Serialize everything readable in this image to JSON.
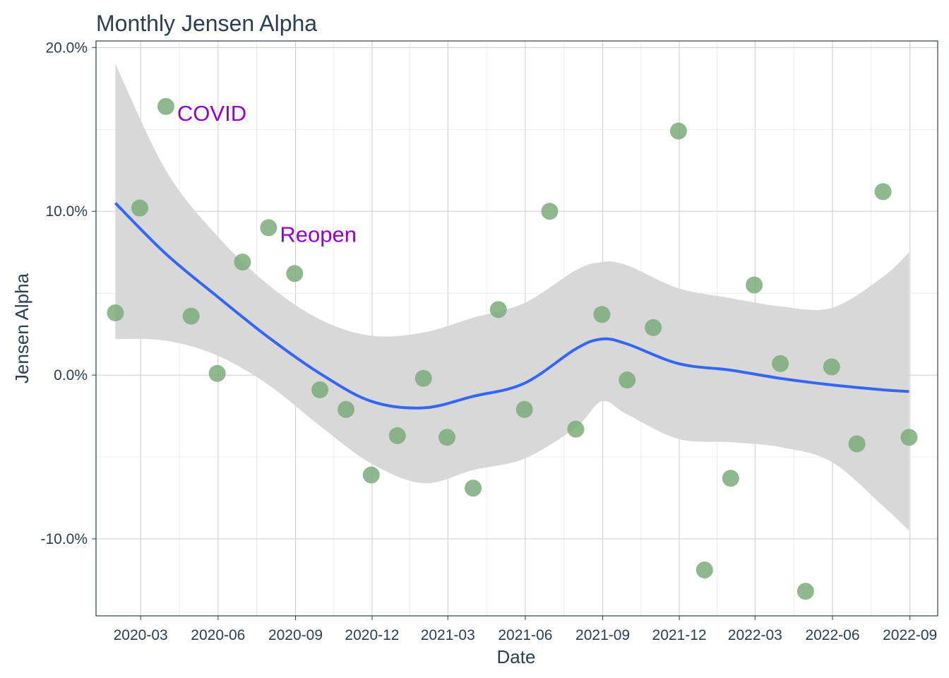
{
  "chart_data": {
    "type": "scatter",
    "title": "Monthly Jensen Alpha",
    "xlabel": "Date",
    "ylabel": "Jensen Alpha",
    "x_ticks": [
      "2020-03",
      "2020-06",
      "2020-09",
      "2020-12",
      "2021-03",
      "2021-06",
      "2021-09",
      "2021-12",
      "2022-03",
      "2022-06",
      "2022-09"
    ],
    "y_ticks": [
      "-10.0%",
      "0.0%",
      "10.0%",
      "20.0%"
    ],
    "xlim": [
      "2020-01-08",
      "2022-10-04"
    ],
    "ylim": [
      -14.7,
      20.4
    ],
    "grid": true,
    "points": [
      {
        "x": "2020-01-31",
        "y": 3.8
      },
      {
        "x": "2020-02-29",
        "y": 10.2
      },
      {
        "x": "2020-03-31",
        "y": 16.4
      },
      {
        "x": "2020-04-30",
        "y": 3.6
      },
      {
        "x": "2020-05-31",
        "y": 0.1
      },
      {
        "x": "2020-06-30",
        "y": 6.9
      },
      {
        "x": "2020-07-31",
        "y": 9.0
      },
      {
        "x": "2020-08-31",
        "y": 6.2
      },
      {
        "x": "2020-09-30",
        "y": -0.9
      },
      {
        "x": "2020-10-31",
        "y": -2.1
      },
      {
        "x": "2020-11-30",
        "y": -6.1
      },
      {
        "x": "2020-12-31",
        "y": -3.7
      },
      {
        "x": "2021-01-31",
        "y": -0.2
      },
      {
        "x": "2021-02-28",
        "y": -3.8
      },
      {
        "x": "2021-03-31",
        "y": -6.9
      },
      {
        "x": "2021-04-30",
        "y": 4.0
      },
      {
        "x": "2021-05-31",
        "y": -2.1
      },
      {
        "x": "2021-06-30",
        "y": 10.0
      },
      {
        "x": "2021-07-31",
        "y": -3.3
      },
      {
        "x": "2021-08-31",
        "y": 3.7
      },
      {
        "x": "2021-09-30",
        "y": -0.3
      },
      {
        "x": "2021-10-31",
        "y": 2.9
      },
      {
        "x": "2021-11-30",
        "y": 14.9
      },
      {
        "x": "2021-12-31",
        "y": -11.9
      },
      {
        "x": "2022-01-31",
        "y": -6.3
      },
      {
        "x": "2022-02-28",
        "y": 5.5
      },
      {
        "x": "2022-03-31",
        "y": 0.7
      },
      {
        "x": "2022-04-30",
        "y": -13.2
      },
      {
        "x": "2022-05-31",
        "y": 0.5
      },
      {
        "x": "2022-06-30",
        "y": -4.2
      },
      {
        "x": "2022-07-31",
        "y": 11.2
      },
      {
        "x": "2022-08-31",
        "y": -3.8
      }
    ],
    "smooth": {
      "x": [
        "2020-01-31",
        "2020-03-31",
        "2020-05-31",
        "2020-07-31",
        "2020-09-30",
        "2020-11-30",
        "2021-01-31",
        "2021-03-31",
        "2021-05-31",
        "2021-07-31",
        "2021-08-31",
        "2021-09-30",
        "2021-11-30",
        "2022-01-31",
        "2022-03-31",
        "2022-05-31",
        "2022-07-31",
        "2022-08-31"
      ],
      "y": [
        10.5,
        7.4,
        4.8,
        2.3,
        0.1,
        -1.6,
        -2.0,
        -1.3,
        -0.5,
        1.6,
        2.2,
        1.9,
        0.7,
        0.3,
        -0.2,
        -0.6,
        -0.9,
        -1.0
      ],
      "lower": [
        2.2,
        2.1,
        1.2,
        -0.6,
        -3.1,
        -5.4,
        -6.6,
        -5.8,
        -5.1,
        -3.2,
        -1.6,
        -2.4,
        -3.9,
        -4.1,
        -4.4,
        -5.3,
        -8.0,
        -9.5
      ],
      "upper": [
        19.0,
        12.5,
        8.5,
        5.5,
        3.4,
        2.4,
        2.6,
        3.5,
        4.4,
        6.4,
        6.9,
        6.7,
        5.3,
        4.7,
        4.2,
        4.1,
        6.0,
        7.5
      ]
    },
    "annotations": [
      {
        "text": "COVID",
        "x": "2020-03-31",
        "y": 16.4
      },
      {
        "text": "Reopen",
        "x": "2020-07-31",
        "y": 9.0
      }
    ],
    "colors": {
      "point": "#7bab7b",
      "smooth_line": "#3366ff",
      "ribbon": "#d6d6d6",
      "annotation": "#9400d3",
      "grid": "#cccccc",
      "panel_border": "#2c3e50"
    }
  }
}
